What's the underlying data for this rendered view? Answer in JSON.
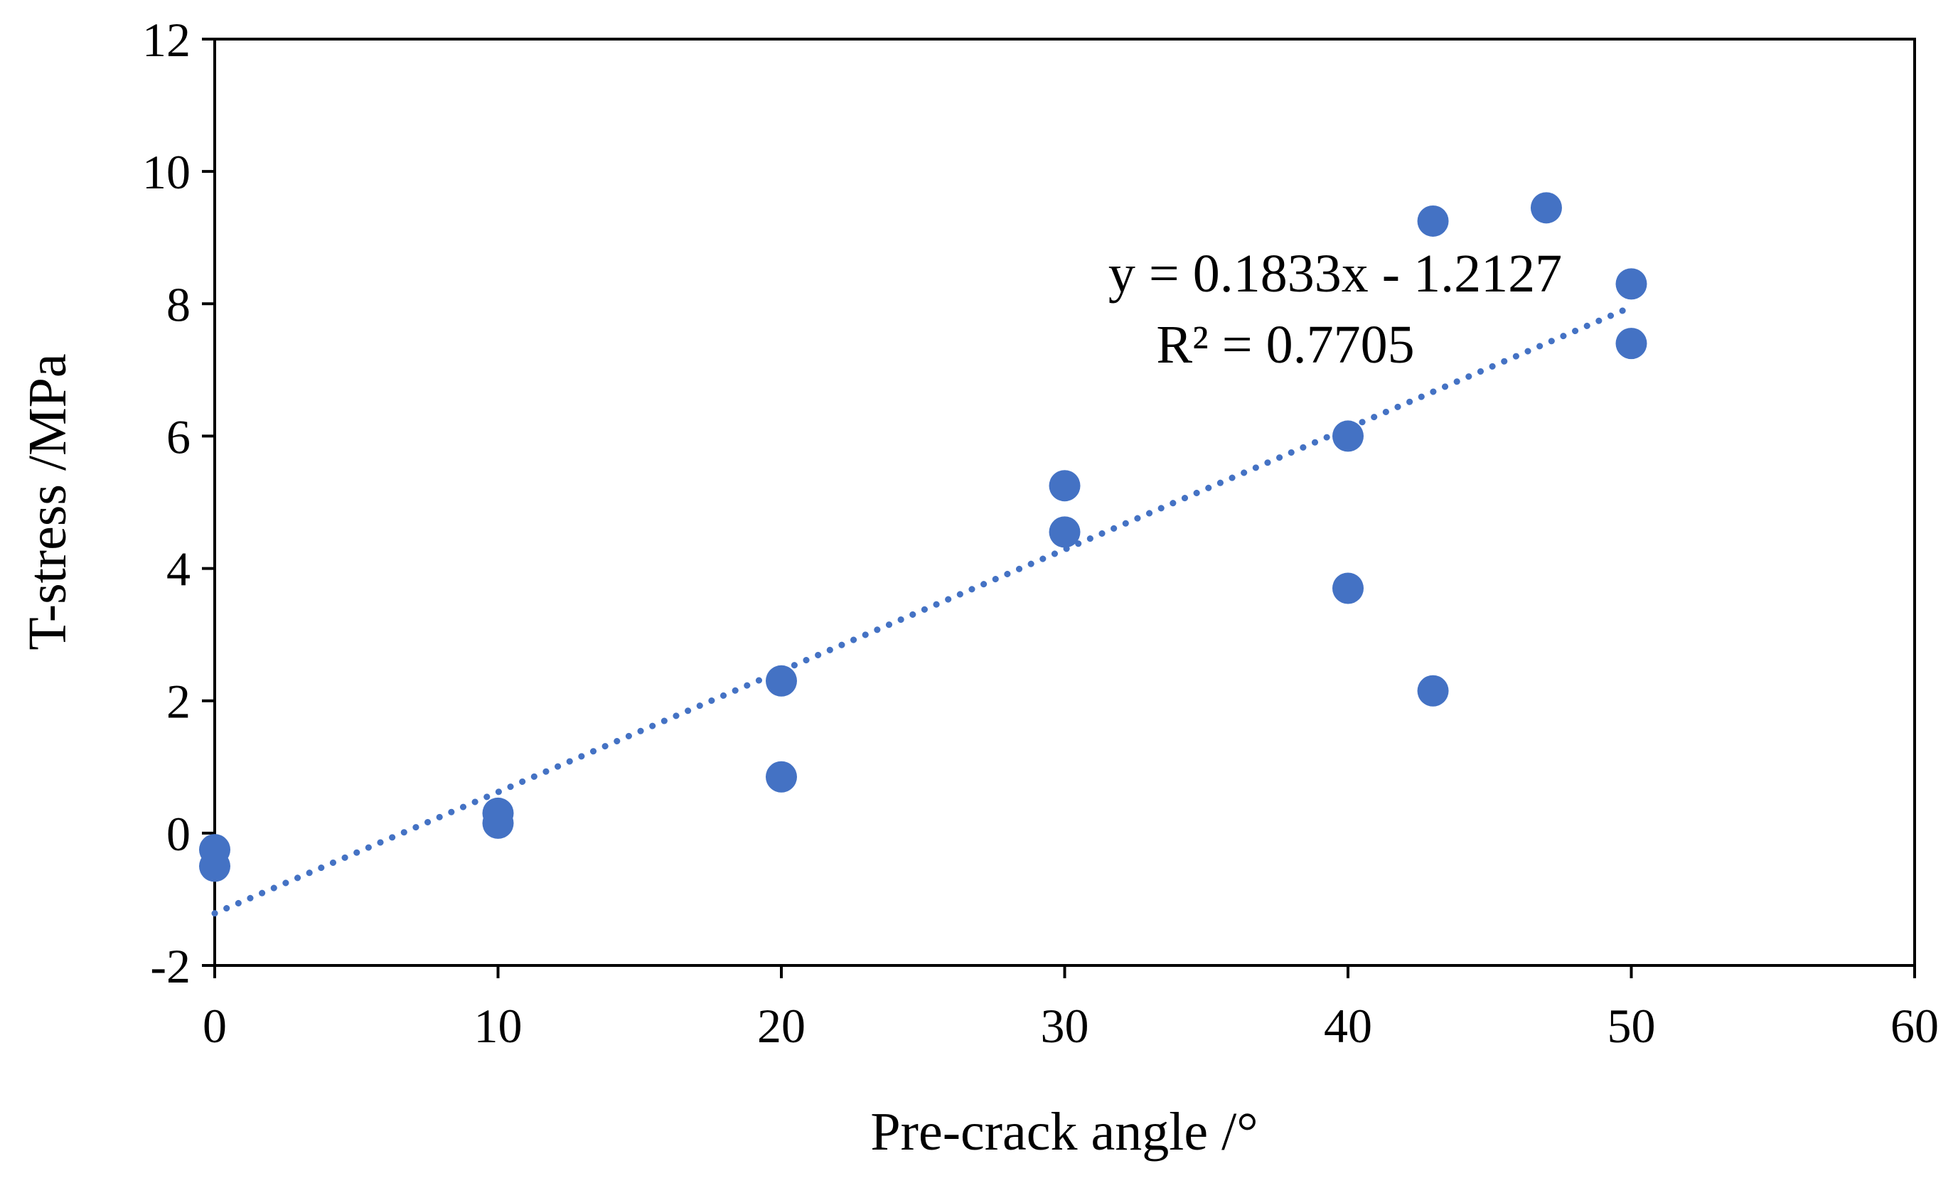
{
  "colors": {
    "marker": "#4472C4",
    "trendline": "#4472C4",
    "axis": "#000000",
    "background": "#ffffff"
  },
  "chart_data": {
    "type": "scatter",
    "title": "",
    "xlabel": "Pre-crack angle /°",
    "ylabel": "T-stress /MPa",
    "xlim": [
      0,
      60
    ],
    "ylim": [
      -2,
      12
    ],
    "xticks": [
      0,
      10,
      20,
      30,
      40,
      50,
      60
    ],
    "yticks": [
      -2,
      0,
      2,
      4,
      6,
      8,
      10,
      12
    ],
    "xtick_labels": [
      "0",
      "10",
      "20",
      "30",
      "40",
      "50",
      "60"
    ],
    "ytick_labels": [
      "-2",
      "0",
      "2",
      "4",
      "6",
      "8",
      "10",
      "12"
    ],
    "grid": false,
    "legend": "none",
    "series": [
      {
        "name": "T-stress",
        "x": [
          0,
          0,
          10,
          10,
          20,
          20,
          30,
          30,
          40,
          40,
          43,
          43,
          47,
          50,
          50
        ],
        "y": [
          -0.25,
          -0.5,
          0.3,
          0.15,
          2.3,
          0.85,
          5.25,
          4.55,
          6.0,
          3.7,
          9.25,
          2.15,
          9.45,
          8.3,
          7.4
        ]
      }
    ],
    "trendline": {
      "type": "linear",
      "slope": 0.1833,
      "intercept": -1.2127,
      "x_range": [
        0,
        50
      ],
      "style": "dotted"
    },
    "annotations": {
      "equation": "y = 0.1833x - 1.2127",
      "r_squared": "R² = 0.7705"
    }
  }
}
